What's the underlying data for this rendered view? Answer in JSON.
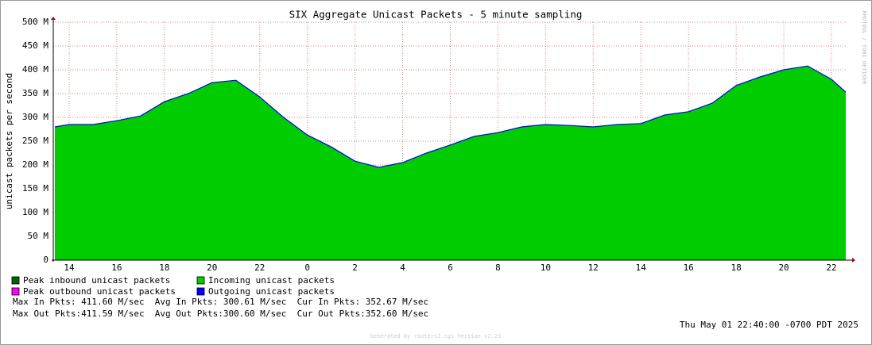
{
  "chart_data": {
    "type": "area",
    "title": "SIX Aggregate Unicast Packets - 5 minute sampling",
    "y_label": "unicast packets per second",
    "watermark": "RRDTOOL / TOBI OETIKER",
    "x": [
      13.4,
      14,
      15,
      16,
      17,
      18,
      19,
      20,
      21,
      22,
      23,
      24,
      25,
      26,
      27,
      28,
      29,
      30,
      31,
      32,
      33,
      34,
      35,
      36,
      37,
      38,
      39,
      40,
      41,
      42,
      43,
      44,
      45,
      46,
      46.6
    ],
    "series": [
      {
        "name": "Incoming unicast packets",
        "color": "#00cc00",
        "values": [
          280,
          285,
          285,
          293,
          303,
          333,
          350,
          373,
          378,
          343,
          300,
          263,
          238,
          208,
          195,
          205,
          225,
          242,
          260,
          268,
          280,
          285,
          283,
          280,
          285,
          287,
          305,
          312,
          330,
          367,
          385,
          400,
          408,
          380,
          353
        ]
      },
      {
        "name": "Outgoing unicast packets",
        "color": "#0000ff",
        "values": [
          280,
          285,
          285,
          293,
          303,
          333,
          350,
          373,
          378,
          343,
          300,
          263,
          238,
          208,
          195,
          205,
          225,
          242,
          260,
          268,
          280,
          285,
          283,
          280,
          285,
          287,
          305,
          312,
          330,
          367,
          385,
          400,
          408,
          380,
          353
        ]
      }
    ],
    "extra_legend": [
      {
        "name": "Peak inbound unicast packets",
        "color": "#006600"
      },
      {
        "name": "Peak outbound unicast packets",
        "color": "#ff00ff"
      }
    ],
    "xlim": [
      13.333,
      46.667
    ],
    "xticks": [
      {
        "value": 14,
        "label": "14"
      },
      {
        "value": 16,
        "label": "16"
      },
      {
        "value": 18,
        "label": "18"
      },
      {
        "value": 20,
        "label": "20"
      },
      {
        "value": 22,
        "label": "22"
      },
      {
        "value": 24,
        "label": "0"
      },
      {
        "value": 26,
        "label": "2"
      },
      {
        "value": 28,
        "label": "4"
      },
      {
        "value": 30,
        "label": "6"
      },
      {
        "value": 32,
        "label": "8"
      },
      {
        "value": 34,
        "label": "10"
      },
      {
        "value": 36,
        "label": "12"
      },
      {
        "value": 38,
        "label": "14"
      },
      {
        "value": 40,
        "label": "16"
      },
      {
        "value": 42,
        "label": "18"
      },
      {
        "value": 44,
        "label": "20"
      },
      {
        "value": 46,
        "label": "22"
      }
    ],
    "ylim": [
      0,
      500
    ],
    "yticks": [
      0,
      {
        "value": 50,
        "label": "50 M"
      },
      {
        "value": 100,
        "label": "100 M"
      },
      {
        "value": 150,
        "label": "150 M"
      },
      {
        "value": 200,
        "label": "200 M"
      },
      {
        "value": 250,
        "label": "250 M"
      },
      {
        "value": 300,
        "label": "300 M"
      },
      {
        "value": 350,
        "label": "350 M"
      },
      {
        "value": 400,
        "label": "400 M"
      },
      {
        "value": 450,
        "label": "450 M"
      },
      {
        "value": 500,
        "label": "500 M"
      }
    ],
    "grid": true,
    "stats": [
      "Max In Pkts: 411.60 M/sec  Avg In Pkts: 300.61 M/sec  Cur In Pkts: 352.67 M/sec",
      "Max Out Pkts:411.59 M/sec  Avg Out Pkts:300.60 M/sec  Cur Out Pkts:352.60 M/sec"
    ],
    "timestamp": "Thu May 01 22:40:00 -0700 PDT 2025",
    "footer": "Generated by routers2.cgi Version v2.23"
  }
}
